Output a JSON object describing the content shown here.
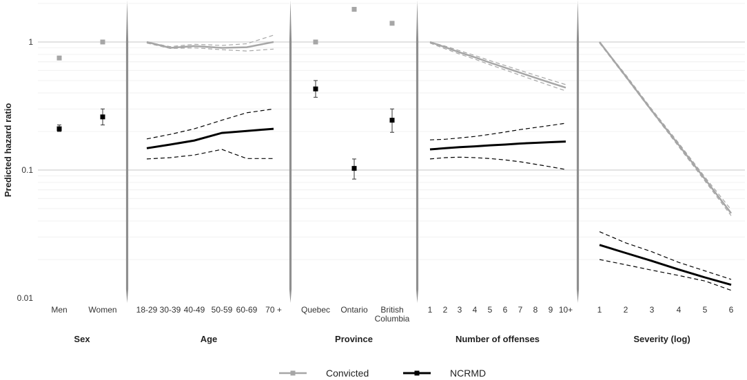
{
  "chart_data": {
    "type": "line",
    "y_axis": {
      "label": "Predicted hazard ratio",
      "scale": "log",
      "range": [
        0.008,
        2.2
      ],
      "ticks": [
        "0.01",
        "0.1",
        "1"
      ]
    },
    "legend": [
      {
        "name": "Convicted",
        "color": "#a6a6a6"
      },
      {
        "name": "NCRMD",
        "color": "#000000"
      }
    ],
    "panels": [
      {
        "title": "Sex",
        "kind": "points",
        "categories": [
          "Men",
          "Women"
        ],
        "convicted": [
          0.75,
          1.0
        ],
        "ncrmd": [
          0.21,
          0.26
        ],
        "ncrmd_lo": [
          0.2,
          0.225
        ],
        "ncrmd_hi": [
          0.225,
          0.3
        ]
      },
      {
        "title": "Age",
        "kind": "lines",
        "categories": [
          "18-29",
          "30-39",
          "40-49",
          "50-59",
          "60-69",
          "70 +"
        ],
        "convicted": [
          1.0,
          0.9,
          0.93,
          0.9,
          0.91,
          1.0
        ],
        "convicted_lo": [
          0.98,
          0.89,
          0.9,
          0.87,
          0.85,
          0.88
        ],
        "convicted_hi": [
          1.0,
          0.92,
          0.96,
          0.94,
          0.97,
          1.13
        ],
        "ncrmd": [
          0.148,
          0.158,
          0.17,
          0.195,
          0.202,
          0.21
        ],
        "ncrmd_lo": [
          0.122,
          0.125,
          0.131,
          0.145,
          0.123,
          0.123
        ],
        "ncrmd_hi": [
          0.175,
          0.19,
          0.21,
          0.245,
          0.28,
          0.3
        ]
      },
      {
        "title": "Province",
        "kind": "points",
        "categories": [
          "Quebec",
          "Ontario",
          "British\nColumbia"
        ],
        "convicted": [
          1.0,
          1.8,
          1.4
        ],
        "ncrmd": [
          0.43,
          0.103,
          0.245
        ],
        "ncrmd_lo": [
          0.37,
          0.085,
          0.197
        ],
        "ncrmd_hi": [
          0.5,
          0.122,
          0.3
        ]
      },
      {
        "title": "Number of offenses",
        "kind": "lines",
        "categories": [
          "1",
          "2",
          "3",
          "4",
          "5",
          "6",
          "7",
          "8",
          "9",
          "10+"
        ],
        "convicted": [
          1.0,
          0.91,
          0.83,
          0.76,
          0.69,
          0.63,
          0.575,
          0.525,
          0.48,
          0.44
        ],
        "convicted_lo": [
          0.98,
          0.885,
          0.805,
          0.735,
          0.665,
          0.605,
          0.55,
          0.5,
          0.455,
          0.415
        ],
        "convicted_hi": [
          1.0,
          0.93,
          0.855,
          0.785,
          0.715,
          0.655,
          0.6,
          0.55,
          0.505,
          0.465
        ],
        "ncrmd": [
          0.145,
          0.148,
          0.151,
          0.153,
          0.156,
          0.158,
          0.161,
          0.163,
          0.165,
          0.167
        ],
        "ncrmd_lo": [
          0.122,
          0.125,
          0.126,
          0.125,
          0.123,
          0.12,
          0.116,
          0.111,
          0.106,
          0.101
        ],
        "ncrmd_hi": [
          0.172,
          0.174,
          0.178,
          0.183,
          0.19,
          0.198,
          0.207,
          0.215,
          0.223,
          0.232
        ]
      },
      {
        "title": "Severity (log)",
        "kind": "lines",
        "categories": [
          "1",
          "2",
          "3",
          "4",
          "5",
          "6"
        ],
        "convicted": [
          1.0,
          0.54,
          0.29,
          0.157,
          0.085,
          0.046
        ],
        "convicted_lo": [
          0.98,
          0.53,
          0.285,
          0.152,
          0.082,
          0.044
        ],
        "convicted_hi": [
          1.0,
          0.555,
          0.298,
          0.162,
          0.088,
          0.049
        ],
        "ncrmd": [
          0.026,
          0.0225,
          0.0195,
          0.0167,
          0.0145,
          0.0127
        ],
        "ncrmd_lo": [
          0.02,
          0.0182,
          0.0165,
          0.015,
          0.0136,
          0.0115
        ],
        "ncrmd_hi": [
          0.033,
          0.027,
          0.023,
          0.019,
          0.0163,
          0.014
        ]
      }
    ]
  }
}
